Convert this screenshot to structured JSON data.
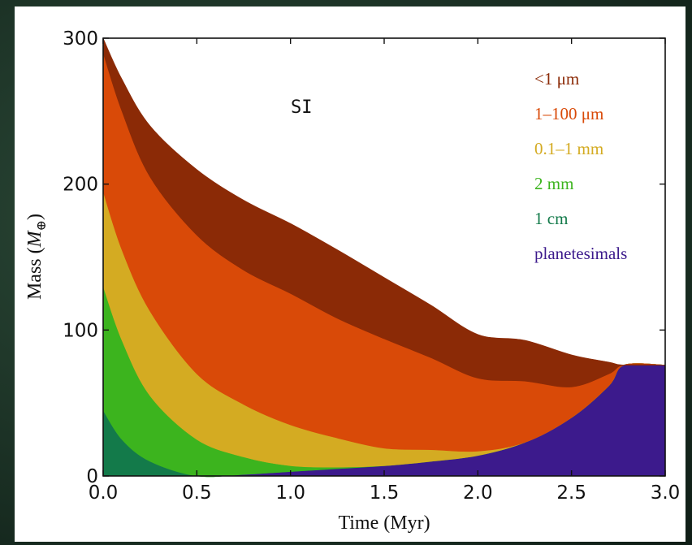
{
  "chart_data": {
    "type": "area",
    "annotation": "SI",
    "xlabel": "Time (Myr)",
    "ylabel_prefix": "Mass (",
    "ylabel_symbol": "M",
    "ylabel_subscript": "⊕",
    "ylabel_suffix": ")",
    "xlim": [
      0,
      3
    ],
    "ylim": [
      0,
      300
    ],
    "xticks": [
      "0.0",
      "0.5",
      "1.0",
      "1.5",
      "2.0",
      "2.5",
      "3.0"
    ],
    "yticks": [
      "0",
      "100",
      "200",
      "300"
    ],
    "legend_position": "top-right",
    "x": [
      0.0,
      0.1,
      0.25,
      0.5,
      0.75,
      1.0,
      1.25,
      1.5,
      1.75,
      2.0,
      2.25,
      2.5,
      2.7,
      2.78,
      3.0
    ],
    "series": [
      {
        "name": "planetesimals",
        "color": "#3c1a8c",
        "values": [
          0,
          0,
          0,
          0,
          1,
          3,
          5,
          7,
          10,
          14,
          23,
          40,
          62,
          76,
          76
        ]
      },
      {
        "name": "1 cm",
        "color": "#137a4a",
        "values": [
          45,
          25,
          10,
          0,
          0,
          0,
          0,
          0,
          0,
          0,
          0,
          0,
          0,
          0,
          0
        ]
      },
      {
        "name": "2 mm",
        "color": "#3cb41e",
        "values": [
          85,
          68,
          45,
          25,
          12,
          4,
          1,
          0,
          0,
          0,
          0,
          0,
          0,
          0,
          0
        ]
      },
      {
        "name": "0.1–1 mm",
        "color": "#d4ab22",
        "values": [
          65,
          62,
          58,
          45,
          36,
          28,
          20,
          12,
          8,
          3,
          0,
          0,
          0,
          0,
          0
        ]
      },
      {
        "name": "1–100 μm",
        "color": "#d94a08",
        "values": [
          95,
          95,
          92,
          95,
          92,
          90,
          82,
          75,
          63,
          50,
          42,
          21,
          8,
          0,
          0
        ]
      },
      {
        "name": "<1 μm",
        "color": "#8b2a06",
        "values": [
          10,
          22,
          35,
          45,
          48,
          48,
          47,
          42,
          36,
          30,
          28,
          22,
          8,
          0,
          0
        ]
      }
    ],
    "legend": [
      {
        "label": "<1 μm",
        "color": "#8b2a06"
      },
      {
        "label": "1–100 μm",
        "color": "#d94a08"
      },
      {
        "label": "0.1–1 mm",
        "color": "#d4ab22"
      },
      {
        "label": "2 mm",
        "color": "#3cb41e"
      },
      {
        "label": "1 cm",
        "color": "#137a4a"
      },
      {
        "label": "planetesimals",
        "color": "#3c1a8c"
      }
    ]
  }
}
